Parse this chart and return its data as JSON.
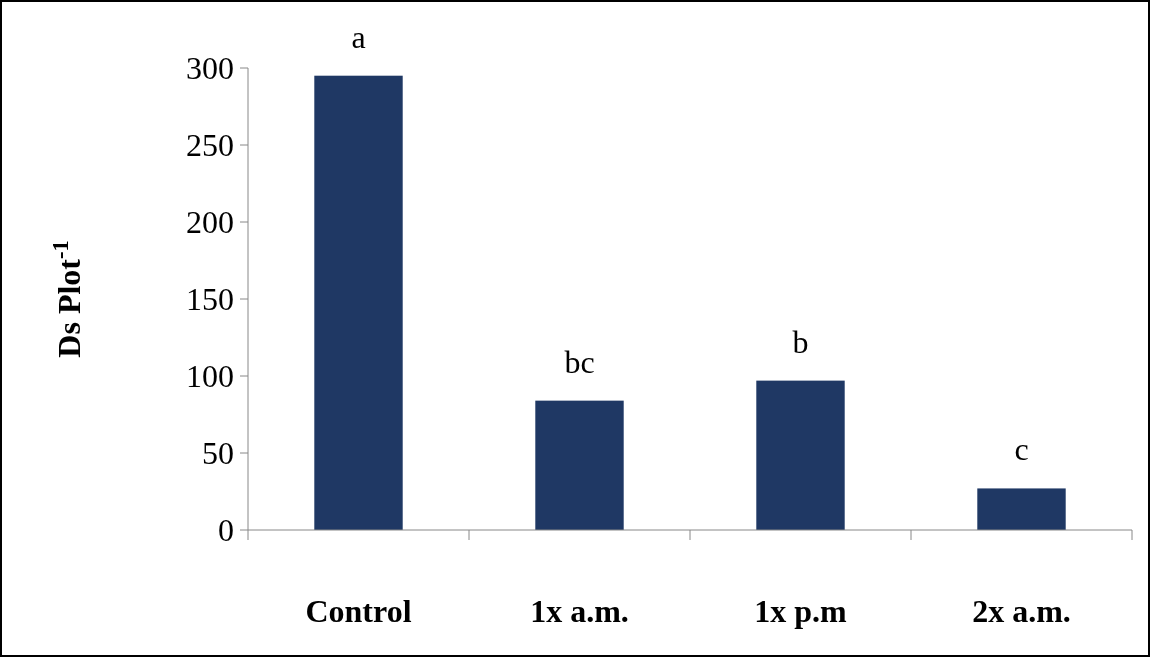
{
  "chart_data": {
    "type": "bar",
    "ylabel": "Ds Plot$^{-1}$",
    "categories": [
      "Control",
      "1x a.m.",
      "1x p.m",
      "2x a.m."
    ],
    "values": [
      295,
      84,
      97,
      27
    ],
    "color": "#1f3864",
    "ylim": [
      0,
      300
    ],
    "yticks": [
      0,
      50,
      100,
      150,
      200,
      250,
      300
    ],
    "grid": false,
    "annotations": [
      {
        "text": "a",
        "x": "Control",
        "y": 295
      },
      {
        "text": "bc",
        "x": "1x a.m.",
        "y": 84
      },
      {
        "text": "b",
        "x": "1x p.m",
        "y": 97
      },
      {
        "text": "c",
        "x": "2x a.m.",
        "y": 27
      }
    ]
  }
}
